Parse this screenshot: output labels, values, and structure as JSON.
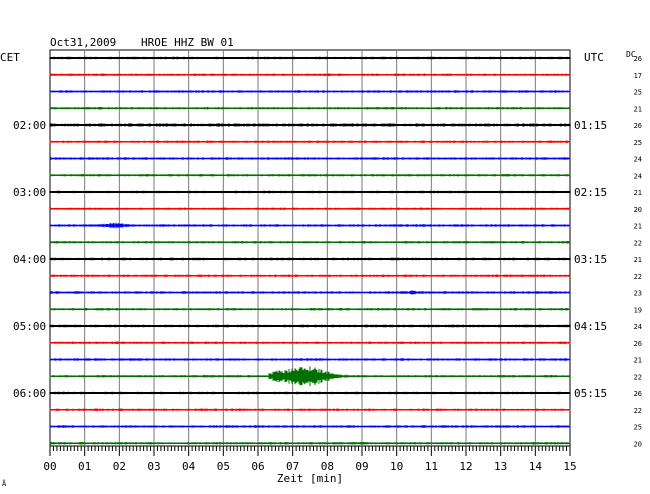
{
  "header": {
    "date": "Oct31,2009",
    "station": "HROE HHZ BW 01",
    "left_zone": "CET",
    "right_zone": "UTC",
    "dc_label": "DC"
  },
  "footer": {
    "xlabel": "Zeit [min]",
    "corner_mark": "Å"
  },
  "colors": {
    "trace_cycle": [
      "#000000",
      "#ff0000",
      "#0000ff",
      "#007000"
    ],
    "grid": "#000000",
    "background": "#ffffff"
  },
  "chart_data": {
    "type": "helicorder",
    "x_ticks": [
      "00",
      "01",
      "02",
      "03",
      "04",
      "05",
      "06",
      "07",
      "08",
      "09",
      "10",
      "11",
      "12",
      "13",
      "14",
      "15"
    ],
    "xlim": [
      0,
      15
    ],
    "row_minutes": 15,
    "left_time_labels": [
      {
        "row": 4,
        "label": "02:00"
      },
      {
        "row": 8,
        "label": "03:00"
      },
      {
        "row": 12,
        "label": "04:00"
      },
      {
        "row": 16,
        "label": "05:00"
      },
      {
        "row": 20,
        "label": "06:00"
      }
    ],
    "right_time_labels": [
      {
        "row": 4,
        "label": "01:15"
      },
      {
        "row": 8,
        "label": "02:15"
      },
      {
        "row": 12,
        "label": "03:15"
      },
      {
        "row": 16,
        "label": "04:15"
      },
      {
        "row": 20,
        "label": "05:15"
      }
    ],
    "dc_offsets": [
      26,
      17,
      25,
      21,
      26,
      25,
      24,
      24,
      21,
      20,
      21,
      22,
      21,
      22,
      23,
      19,
      24,
      26,
      21,
      22,
      26,
      22,
      25,
      20
    ],
    "noise_amplitude": [
      1.0,
      1.0,
      1.0,
      1.0,
      1.3,
      1.0,
      1.0,
      1.0,
      1.0,
      1.0,
      1.0,
      1.0,
      1.1,
      1.0,
      1.0,
      1.0,
      1.1,
      1.0,
      1.0,
      1.0,
      1.0,
      1.0,
      1.0,
      1.0
    ],
    "events": [
      {
        "row": 10,
        "start_min": 1.1,
        "end_min": 3.0,
        "peak_min": 2.0,
        "amplitude": 3.2
      },
      {
        "row": 14,
        "start_min": 10.0,
        "end_min": 11.0,
        "peak_min": 10.5,
        "amplitude": 2.2
      },
      {
        "row": 19,
        "start_min": 6.3,
        "end_min": 9.0,
        "peak_min": 7.6,
        "amplitude": 12
      },
      {
        "row": 19,
        "start_min": 6.3,
        "end_min": 7.0,
        "peak_min": 6.65,
        "amplitude": 8
      }
    ]
  }
}
